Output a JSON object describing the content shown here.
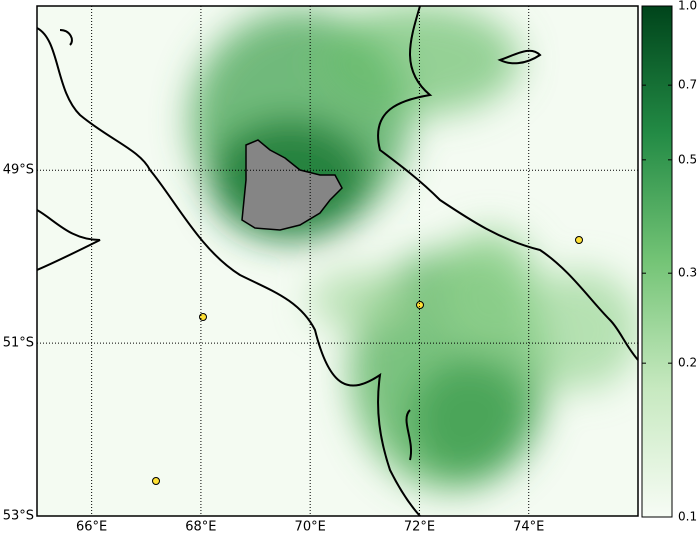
{
  "chart_data": {
    "type": "map",
    "xlim": [
      65,
      76
    ],
    "ylim": [
      -53,
      -47.1
    ],
    "xticks": [
      {
        "value": 66,
        "label": "66°E"
      },
      {
        "value": 68,
        "label": "68°E"
      },
      {
        "value": 70,
        "label": "70°E"
      },
      {
        "value": 72,
        "label": "72°E"
      },
      {
        "value": 74,
        "label": "74°E"
      }
    ],
    "yticks": [
      {
        "value": -49,
        "label": "49°S"
      },
      {
        "value": -51,
        "label": "51°S"
      },
      {
        "value": -53,
        "label": "53°S"
      }
    ],
    "grid": true,
    "colorbar": {
      "scale": "log",
      "lim": [
        0.1,
        1
      ],
      "ticks": [
        {
          "value": 1,
          "label": "1.0"
        },
        0.7,
        0.5,
        0.3,
        0.2,
        0.1
      ],
      "colors": [
        "#f7fcf5",
        "#c7e9c0",
        "#74c476",
        "#238b45",
        "#00441b"
      ]
    }
  }
}
